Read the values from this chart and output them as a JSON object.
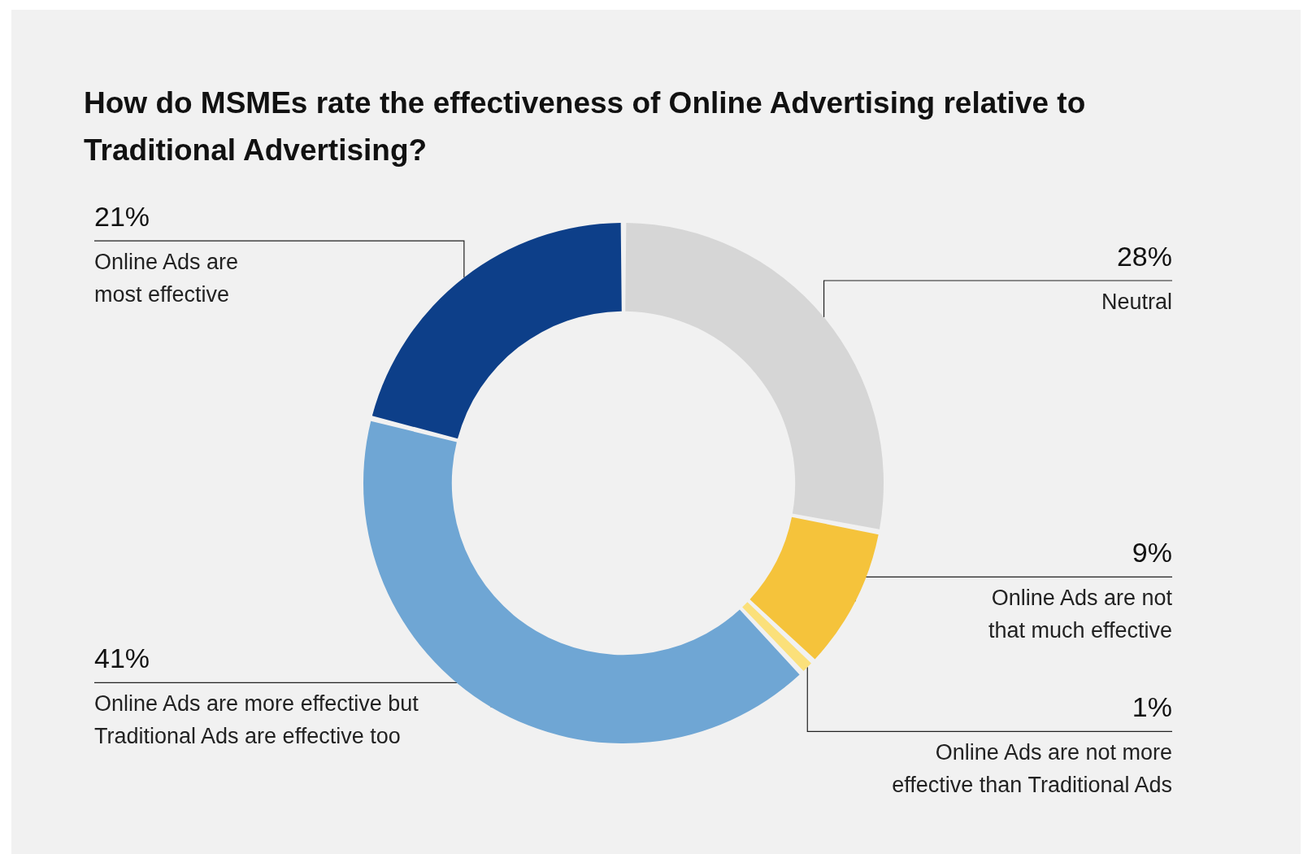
{
  "chart_data": {
    "type": "donut",
    "title": "How do MSMEs rate the effectiveness of Online Advertising relative to Traditional Advertising?",
    "categories": [
      "Neutral",
      "Online Ads are not that much effective",
      "Online Ads are not more effective than Traditional Ads",
      "Online Ads are more effective but Traditional Ads are effective too",
      "Online Ads are most effective"
    ],
    "values": [
      28,
      9,
      1,
      41,
      21
    ],
    "value_labels": [
      "28%",
      "9%",
      "1%",
      "41%",
      "21%"
    ],
    "colors": [
      "#d6d6d6",
      "#f5c33b",
      "#fbe07a",
      "#6fa6d4",
      "#0d3f89"
    ]
  }
}
